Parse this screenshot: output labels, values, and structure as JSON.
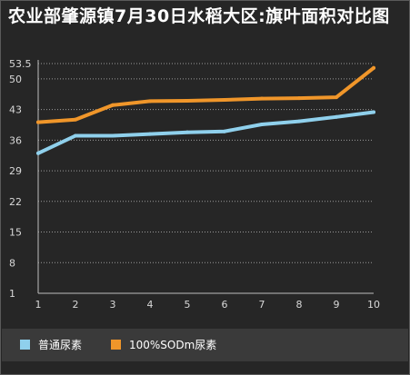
{
  "title": "农业部肇源镇7月30日水稻大区:旗叶面积对比图",
  "colors": {
    "background": "#262626",
    "grid": "#9a9a9a",
    "axis_text": "#d8d8d8"
  },
  "chart_data": {
    "type": "line",
    "title": "农业部肇源镇7月30日水稻大区:旗叶面积对比图",
    "x": [
      1,
      2,
      3,
      4,
      5,
      6,
      7,
      8,
      9,
      10
    ],
    "x_tick_labels": [
      "1",
      "2",
      "3",
      "4",
      "5",
      "6",
      "7",
      "8",
      "9",
      "10"
    ],
    "y_tick_labels": [
      "53.5",
      "50",
      "43",
      "36",
      "29",
      "22",
      "15",
      "8",
      "1"
    ],
    "ylim": [
      1,
      53.5
    ],
    "grid": true,
    "legend_position": "bottom",
    "series": [
      {
        "name": "普通尿素",
        "color": "#8fd0ec",
        "values": [
          33,
          37,
          37,
          37.4,
          37.8,
          38,
          39.6,
          40.3,
          41.3,
          42.4
        ]
      },
      {
        "name": "100%SODm尿素",
        "color": "#f0962a",
        "values": [
          40.1,
          40.7,
          44,
          44.9,
          45,
          45.2,
          45.5,
          45.6,
          45.8,
          52.5
        ]
      }
    ]
  }
}
